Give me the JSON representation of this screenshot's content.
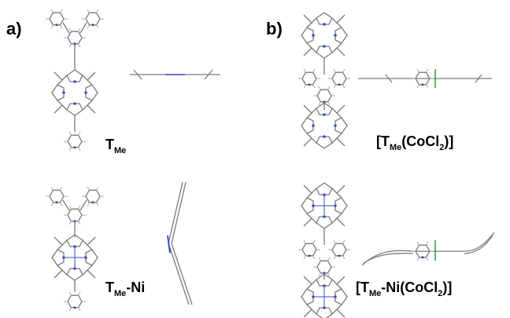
{
  "panels": {
    "a": "a)",
    "b": "b)"
  },
  "labels": [
    [
      "T",
      "Me"
    ],
    [
      "T",
      "Me",
      "-Ni"
    ],
    [
      "[T",
      "Me",
      "(CoCl",
      "2",
      ")]"
    ],
    [
      "[T",
      "Me",
      "-Ni(CoCl",
      "2",
      ")]"
    ]
  ]
}
